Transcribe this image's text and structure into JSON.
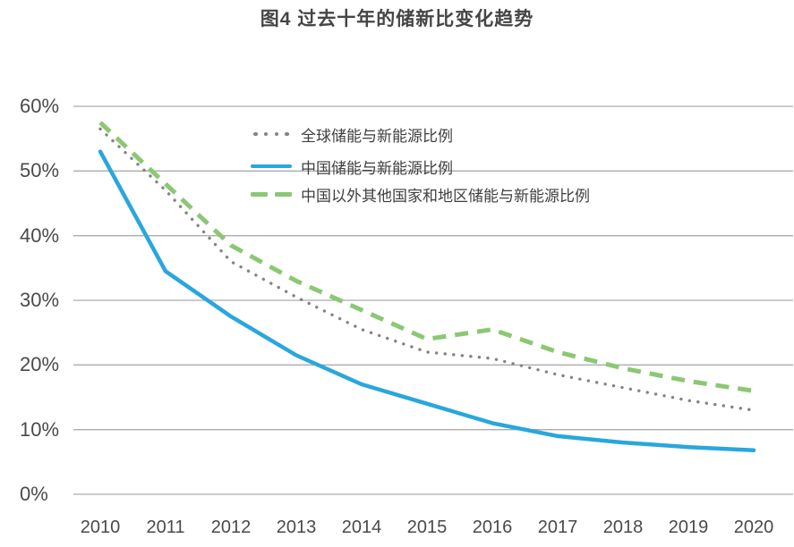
{
  "title": "图4 过去十年的储新比变化趋势",
  "chart_data": {
    "type": "line",
    "x": [
      2010,
      2011,
      2012,
      2013,
      2014,
      2015,
      2016,
      2017,
      2018,
      2019,
      2020
    ],
    "series": [
      {
        "name": "全球储能与新能源比例",
        "style": "dotted",
        "color": "#848484",
        "values": [
          56.5,
          47,
          36,
          30.5,
          25.5,
          22,
          21,
          18.5,
          16.5,
          14.5,
          13
        ]
      },
      {
        "name": "中国储能与新能源比例",
        "style": "solid",
        "color": "#29A7DC",
        "values": [
          53,
          34.5,
          27.5,
          21.5,
          17,
          14,
          11,
          9,
          8,
          7.3,
          6.8
        ]
      },
      {
        "name": "中国以外其他国家和地区储能与新能源比例",
        "style": "dashed",
        "color": "#8AC873",
        "values": [
          57.5,
          48,
          38.5,
          33,
          28.5,
          24,
          25.5,
          22,
          19.5,
          17.5,
          16
        ]
      }
    ],
    "xlabel": "",
    "ylabel": "",
    "ylim": [
      0,
      60
    ],
    "yticks": [
      0,
      10,
      20,
      30,
      40,
      50,
      60
    ],
    "ytick_suffix": "%",
    "grid": "horizontal",
    "grid_color": "#ACAAAE",
    "legend_position": "inside-top-left",
    "text_color": "#4a4a4a",
    "title_color": "#454545"
  }
}
